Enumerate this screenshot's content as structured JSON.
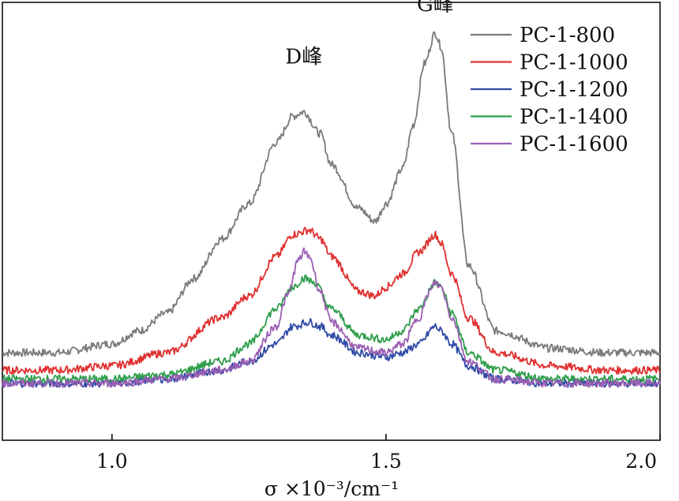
{
  "chart_data": {
    "type": "line",
    "xlabel": "σ ×10⁻³/cm⁻¹",
    "xlim": [
      0.8,
      2.0
    ],
    "xticks": [
      1.0,
      1.5,
      2.0
    ],
    "xtick_labels": [
      "1.0",
      "1.5",
      "2.0"
    ],
    "y_ticks_shown": false,
    "ylim": [
      0,
      1
    ],
    "legend_position": "top-right",
    "annotations": [
      {
        "text": "D峰",
        "x": 1.35,
        "y": 0.86
      },
      {
        "text": "G峰",
        "x": 1.59,
        "y": 0.98
      }
    ],
    "series": [
      {
        "name": "PC-1-800",
        "color": "#7a7a7a",
        "x": [
          0.8,
          0.9,
          1.0,
          1.05,
          1.1,
          1.15,
          1.2,
          1.25,
          1.3,
          1.33,
          1.35,
          1.38,
          1.4,
          1.45,
          1.48,
          1.5,
          1.53,
          1.55,
          1.57,
          1.59,
          1.6,
          1.62,
          1.65,
          1.7,
          1.8,
          1.9,
          2.0
        ],
        "values": [
          0.2,
          0.2,
          0.22,
          0.25,
          0.29,
          0.37,
          0.46,
          0.54,
          0.68,
          0.74,
          0.75,
          0.7,
          0.63,
          0.53,
          0.5,
          0.54,
          0.62,
          0.72,
          0.86,
          0.93,
          0.9,
          0.7,
          0.4,
          0.25,
          0.21,
          0.2,
          0.2
        ]
      },
      {
        "name": "PC-1-1000",
        "color": "#e03030",
        "x": [
          0.8,
          0.9,
          1.0,
          1.1,
          1.2,
          1.25,
          1.3,
          1.33,
          1.36,
          1.38,
          1.4,
          1.45,
          1.48,
          1.5,
          1.53,
          1.56,
          1.59,
          1.6,
          1.62,
          1.65,
          1.7,
          1.8,
          1.9,
          2.0
        ],
        "values": [
          0.16,
          0.16,
          0.17,
          0.2,
          0.28,
          0.33,
          0.42,
          0.47,
          0.48,
          0.46,
          0.42,
          0.34,
          0.33,
          0.35,
          0.38,
          0.43,
          0.47,
          0.45,
          0.38,
          0.28,
          0.2,
          0.17,
          0.16,
          0.16
        ]
      },
      {
        "name": "PC-1-1200",
        "color": "#2f4aa6",
        "x": [
          0.8,
          0.9,
          1.0,
          1.1,
          1.2,
          1.25,
          1.3,
          1.33,
          1.36,
          1.38,
          1.4,
          1.45,
          1.5,
          1.53,
          1.56,
          1.59,
          1.6,
          1.62,
          1.65,
          1.7,
          1.8,
          1.9,
          2.0
        ],
        "values": [
          0.13,
          0.13,
          0.13,
          0.14,
          0.16,
          0.18,
          0.22,
          0.26,
          0.27,
          0.26,
          0.24,
          0.2,
          0.19,
          0.2,
          0.22,
          0.26,
          0.25,
          0.22,
          0.17,
          0.14,
          0.13,
          0.13,
          0.13
        ]
      },
      {
        "name": "PC-1-1400",
        "color": "#2e9e4a",
        "x": [
          0.8,
          0.9,
          1.0,
          1.1,
          1.2,
          1.25,
          1.3,
          1.33,
          1.35,
          1.37,
          1.4,
          1.45,
          1.5,
          1.53,
          1.56,
          1.59,
          1.6,
          1.62,
          1.65,
          1.7,
          1.8,
          1.9,
          2.0
        ],
        "values": [
          0.14,
          0.14,
          0.14,
          0.15,
          0.18,
          0.22,
          0.3,
          0.35,
          0.37,
          0.36,
          0.3,
          0.24,
          0.23,
          0.25,
          0.3,
          0.36,
          0.35,
          0.29,
          0.2,
          0.16,
          0.14,
          0.14,
          0.14
        ]
      },
      {
        "name": "PC-1-1600",
        "color": "#9b5fb3",
        "x": [
          0.8,
          0.9,
          1.0,
          1.1,
          1.2,
          1.25,
          1.3,
          1.32,
          1.34,
          1.35,
          1.36,
          1.38,
          1.4,
          1.45,
          1.5,
          1.53,
          1.56,
          1.58,
          1.59,
          1.6,
          1.62,
          1.65,
          1.7,
          1.8,
          1.9,
          2.0
        ],
        "values": [
          0.13,
          0.13,
          0.13,
          0.14,
          0.16,
          0.18,
          0.26,
          0.33,
          0.41,
          0.43,
          0.42,
          0.34,
          0.27,
          0.21,
          0.2,
          0.22,
          0.28,
          0.34,
          0.36,
          0.35,
          0.28,
          0.18,
          0.14,
          0.13,
          0.13,
          0.13
        ]
      }
    ]
  }
}
